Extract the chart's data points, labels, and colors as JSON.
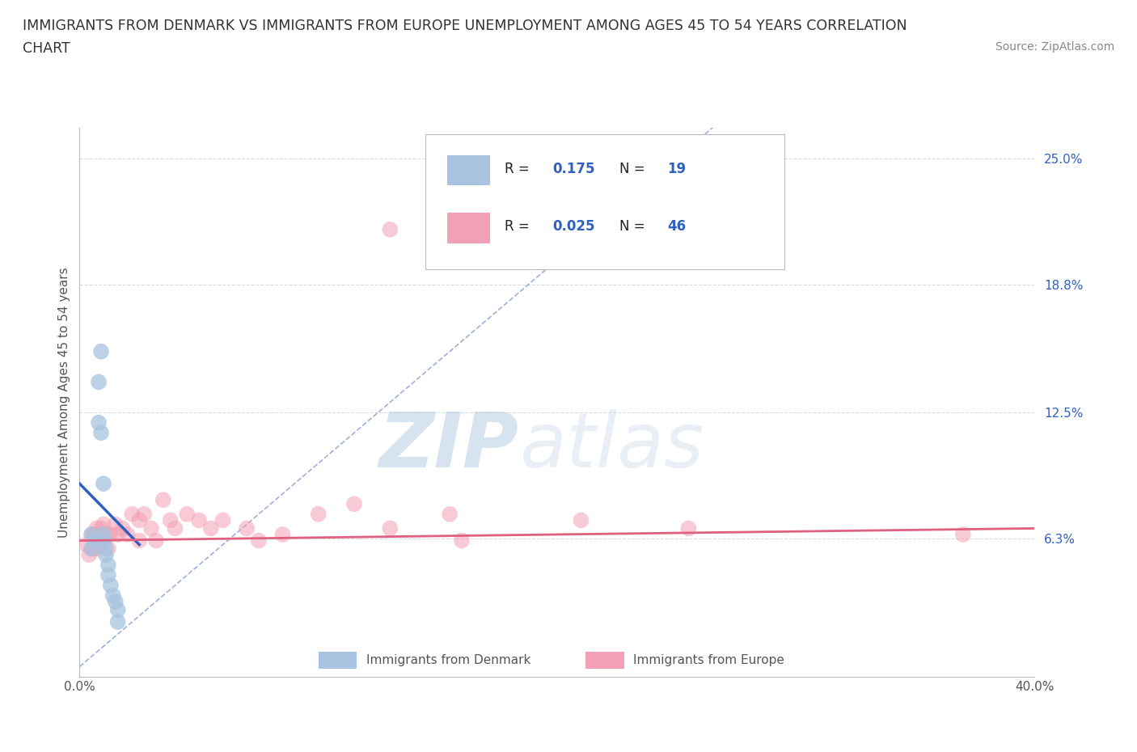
{
  "title_line1": "IMMIGRANTS FROM DENMARK VS IMMIGRANTS FROM EUROPE UNEMPLOYMENT AMONG AGES 45 TO 54 YEARS CORRELATION",
  "title_line2": "CHART",
  "source": "Source: ZipAtlas.com",
  "ylabel": "Unemployment Among Ages 45 to 54 years",
  "xlim": [
    0.0,
    0.4
  ],
  "ylim": [
    -0.01,
    0.265
  ],
  "ytick_positions": [
    0.0,
    0.063,
    0.125,
    0.188,
    0.25
  ],
  "ytick_labels": [
    "",
    "6.3%",
    "12.5%",
    "18.8%",
    "25.0%"
  ],
  "denmark_R": 0.175,
  "denmark_N": 19,
  "europe_R": 0.025,
  "europe_N": 46,
  "denmark_color": "#a8c4e0",
  "europe_color": "#f2a0b5",
  "denmark_line_color": "#3060c0",
  "europe_line_color": "#e06080",
  "diagonal_color": "#7090d0",
  "watermark_zip": "ZIP",
  "watermark_atlas": "atlas",
  "denmark_x": [
    0.005,
    0.005,
    0.006,
    0.008,
    0.008,
    0.009,
    0.009,
    0.01,
    0.01,
    0.01,
    0.011,
    0.011,
    0.012,
    0.012,
    0.013,
    0.014,
    0.015,
    0.016,
    0.016
  ],
  "denmark_y": [
    0.065,
    0.058,
    0.062,
    0.14,
    0.12,
    0.155,
    0.115,
    0.09,
    0.065,
    0.062,
    0.058,
    0.055,
    0.05,
    0.045,
    0.04,
    0.035,
    0.032,
    0.028,
    0.022
  ],
  "europe_x": [
    0.003,
    0.004,
    0.005,
    0.005,
    0.006,
    0.006,
    0.007,
    0.007,
    0.008,
    0.008,
    0.009,
    0.009,
    0.01,
    0.01,
    0.012,
    0.012,
    0.013,
    0.015,
    0.016,
    0.018,
    0.02,
    0.022,
    0.025,
    0.025,
    0.027,
    0.03,
    0.032,
    0.035,
    0.038,
    0.04,
    0.045,
    0.05,
    0.055,
    0.06,
    0.07,
    0.075,
    0.085,
    0.1,
    0.115,
    0.13,
    0.155,
    0.16,
    0.21,
    0.255,
    0.37,
    0.13
  ],
  "europe_y": [
    0.06,
    0.055,
    0.065,
    0.058,
    0.065,
    0.058,
    0.068,
    0.06,
    0.065,
    0.058,
    0.068,
    0.06,
    0.07,
    0.062,
    0.065,
    0.058,
    0.065,
    0.07,
    0.065,
    0.068,
    0.065,
    0.075,
    0.072,
    0.062,
    0.075,
    0.068,
    0.062,
    0.082,
    0.072,
    0.068,
    0.075,
    0.072,
    0.068,
    0.072,
    0.068,
    0.062,
    0.065,
    0.075,
    0.08,
    0.068,
    0.075,
    0.062,
    0.072,
    0.068,
    0.065,
    0.215
  ],
  "background_color": "#ffffff",
  "grid_color": "#d8d8d8"
}
